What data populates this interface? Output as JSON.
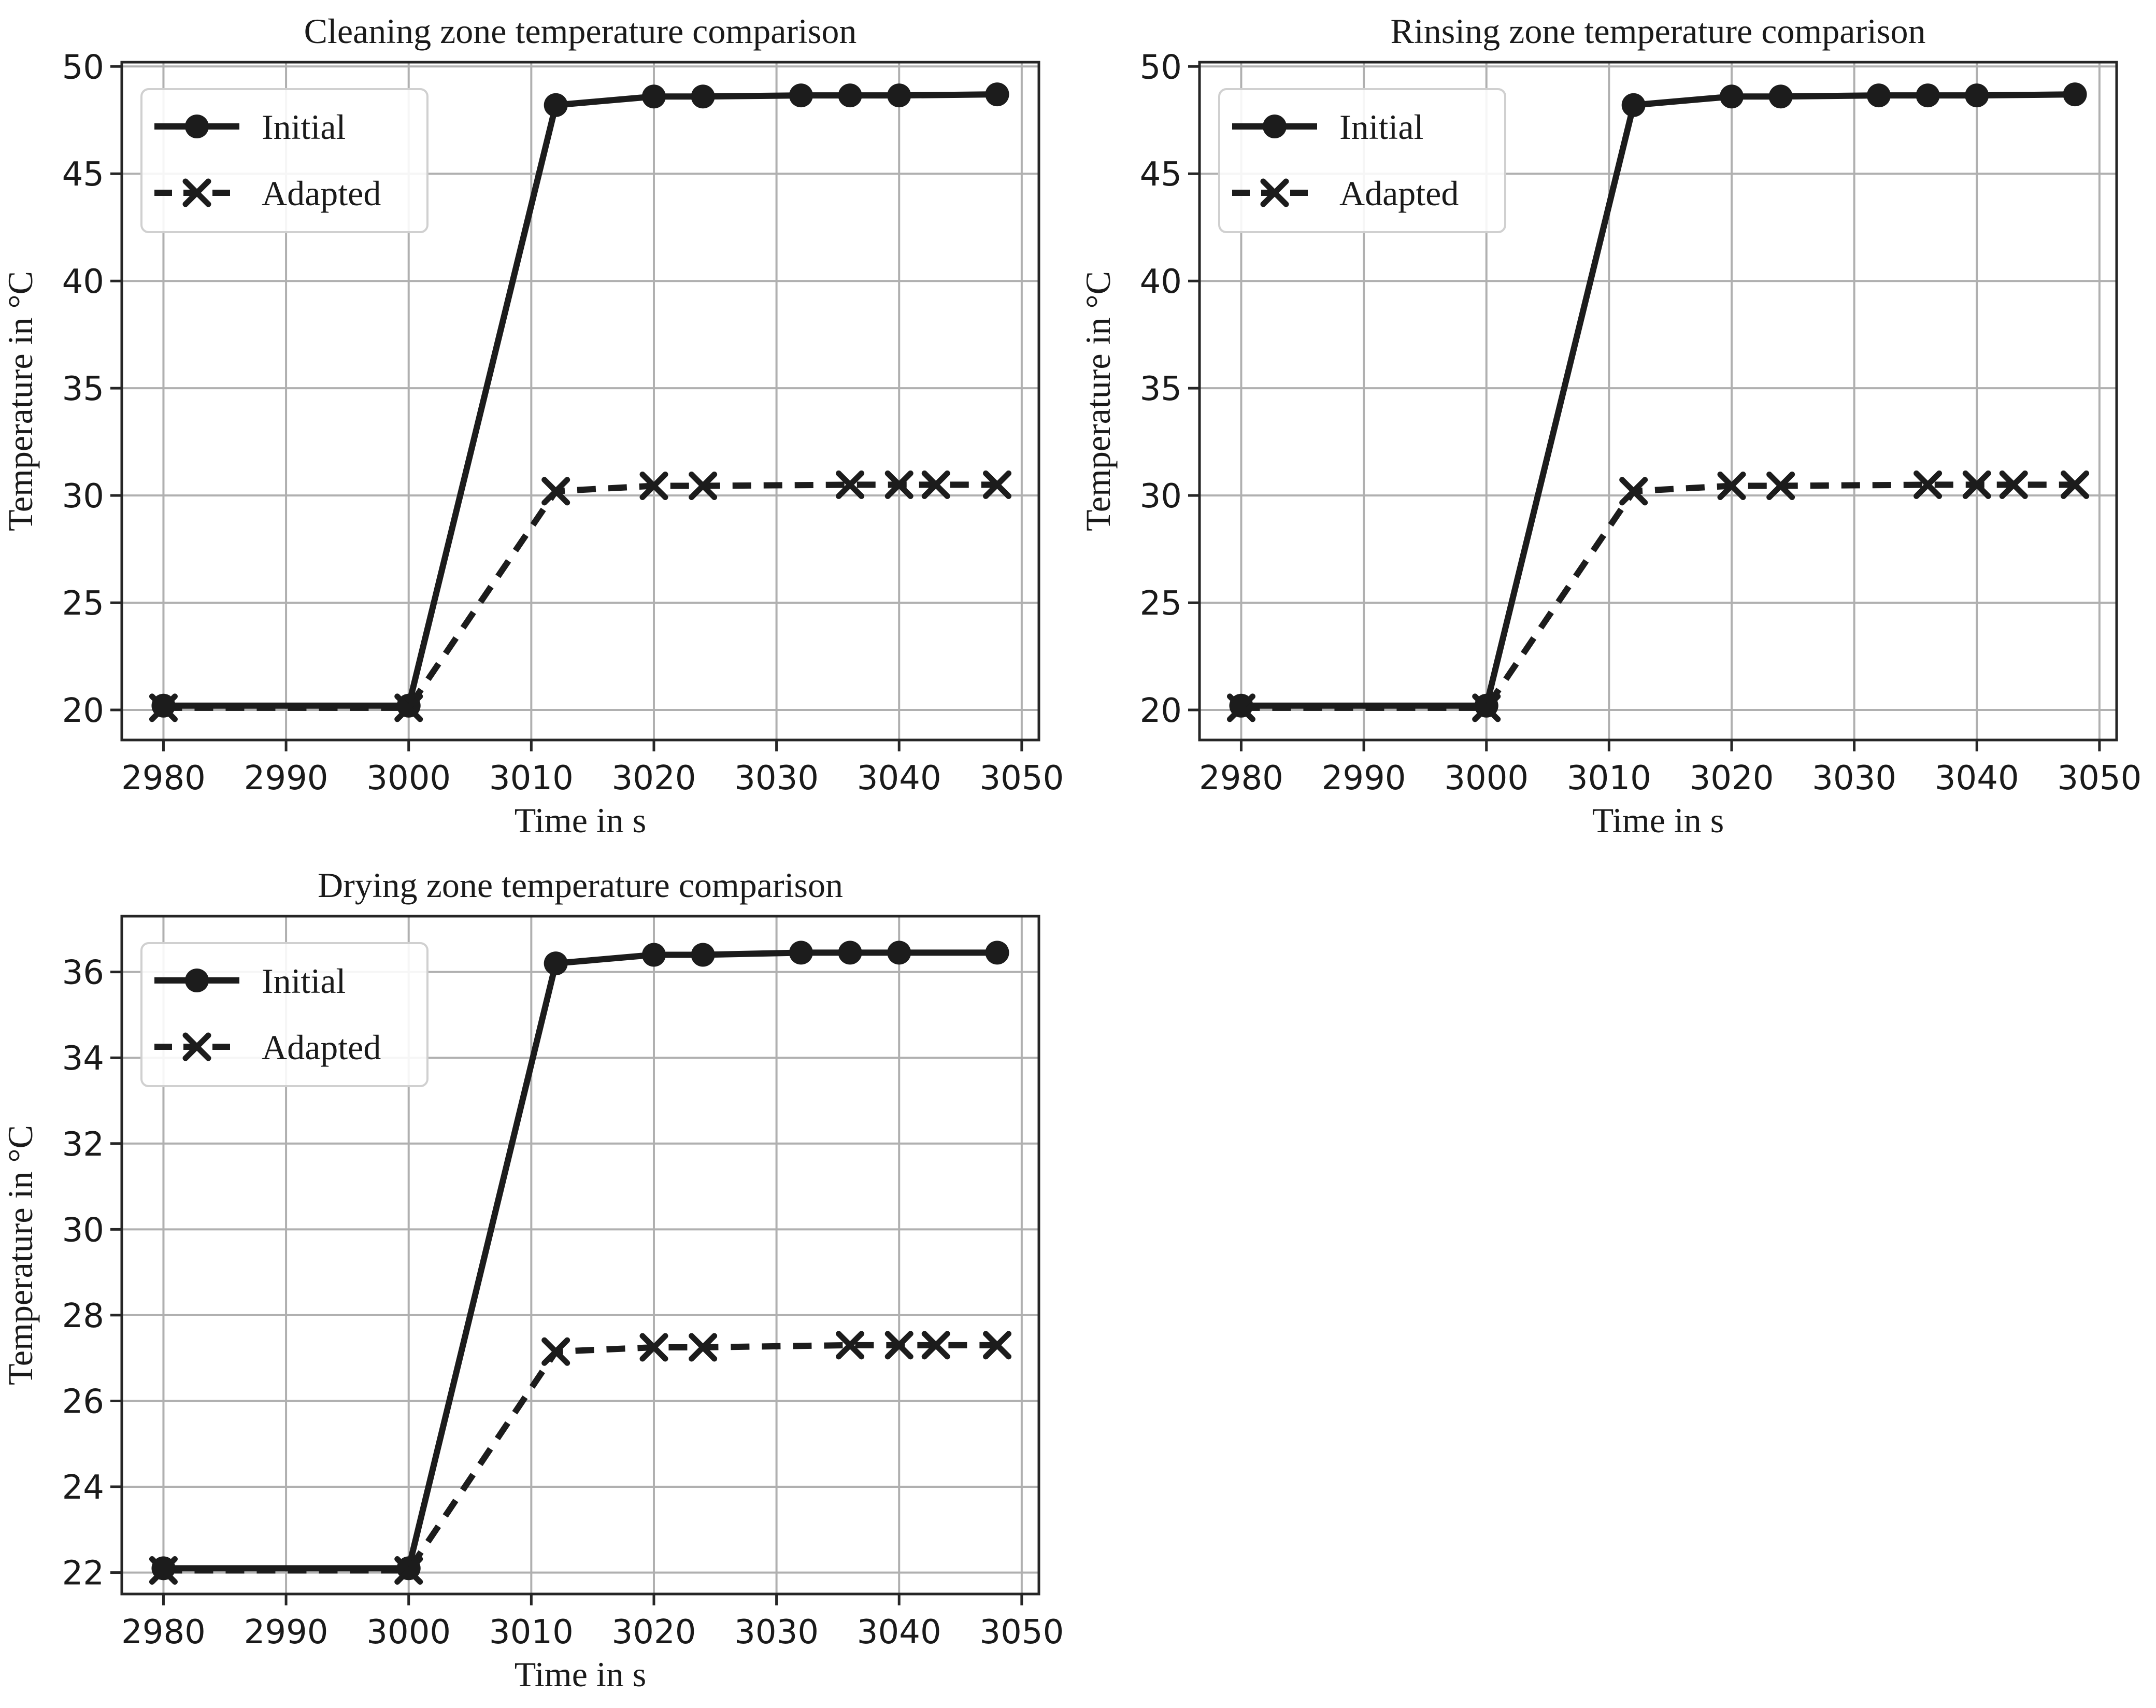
{
  "colors": {
    "line": "#1c1c1c",
    "grid": "#b0b0b0",
    "spine": "#262626",
    "text": "#1a1a1a",
    "legend_border": "#d0d0d0",
    "background": "#ffffff"
  },
  "legend_labels": {
    "initial": "Initial",
    "adapted": "Adapted"
  },
  "chart_data": [
    {
      "type": "line",
      "title": "Cleaning zone temperature comparison",
      "xlabel": "Time in s",
      "ylabel": "Temperature in °C",
      "xlim": [
        2976.6,
        3051.4
      ],
      "ylim": [
        18.6,
        50.2
      ],
      "xticks": [
        2980,
        2990,
        3000,
        3010,
        3020,
        3030,
        3040,
        3050
      ],
      "yticks": [
        20,
        25,
        30,
        35,
        40,
        45,
        50
      ],
      "grid": true,
      "legend": {
        "position": "upper left",
        "entries": [
          "Initial",
          "Adapted"
        ]
      },
      "series": [
        {
          "name": "Initial",
          "line": "solid",
          "marker": "circle",
          "x": [
            2980,
            3000,
            3012,
            3020,
            3024,
            3032,
            3036,
            3040,
            3048
          ],
          "y": [
            20.2,
            20.2,
            48.2,
            48.6,
            48.6,
            48.65,
            48.65,
            48.65,
            48.7
          ]
        },
        {
          "name": "Adapted",
          "line": "dashed",
          "marker": "x",
          "x": [
            2980,
            3000,
            3012,
            3020,
            3024,
            3036,
            3040,
            3043,
            3048
          ],
          "y": [
            20.1,
            20.1,
            30.2,
            30.45,
            30.45,
            30.5,
            30.5,
            30.5,
            30.5
          ]
        }
      ]
    },
    {
      "type": "line",
      "title": "Rinsing zone temperature comparison",
      "xlabel": "Time in s",
      "ylabel": "Temperature in °C",
      "xlim": [
        2976.6,
        3051.4
      ],
      "ylim": [
        18.6,
        50.2
      ],
      "xticks": [
        2980,
        2990,
        3000,
        3010,
        3020,
        3030,
        3040,
        3050
      ],
      "yticks": [
        20,
        25,
        30,
        35,
        40,
        45,
        50
      ],
      "grid": true,
      "legend": {
        "position": "upper left",
        "entries": [
          "Initial",
          "Adapted"
        ]
      },
      "series": [
        {
          "name": "Initial",
          "line": "solid",
          "marker": "circle",
          "x": [
            2980,
            3000,
            3012,
            3020,
            3024,
            3032,
            3036,
            3040,
            3048
          ],
          "y": [
            20.2,
            20.2,
            48.2,
            48.6,
            48.6,
            48.65,
            48.65,
            48.65,
            48.7
          ]
        },
        {
          "name": "Adapted",
          "line": "dashed",
          "marker": "x",
          "x": [
            2980,
            3000,
            3012,
            3020,
            3024,
            3036,
            3040,
            3043,
            3048
          ],
          "y": [
            20.1,
            20.1,
            30.2,
            30.45,
            30.45,
            30.5,
            30.5,
            30.5,
            30.5
          ]
        }
      ]
    },
    {
      "type": "line",
      "title": "Drying zone temperature comparison",
      "xlabel": "Time in s",
      "ylabel": "Temperature in °C",
      "xlim": [
        2976.6,
        3051.4
      ],
      "ylim": [
        21.5,
        37.3
      ],
      "xticks": [
        2980,
        2990,
        3000,
        3010,
        3020,
        3030,
        3040,
        3050
      ],
      "yticks": [
        22,
        24,
        26,
        28,
        30,
        32,
        34,
        36
      ],
      "grid": true,
      "legend": {
        "position": "upper left",
        "entries": [
          "Initial",
          "Adapted"
        ]
      },
      "series": [
        {
          "name": "Initial",
          "line": "solid",
          "marker": "circle",
          "x": [
            2980,
            3000,
            3012,
            3020,
            3024,
            3032,
            3036,
            3040,
            3048
          ],
          "y": [
            22.1,
            22.1,
            36.2,
            36.4,
            36.4,
            36.45,
            36.45,
            36.45,
            36.45
          ]
        },
        {
          "name": "Adapted",
          "line": "dashed",
          "marker": "x",
          "x": [
            2980,
            3000,
            3012,
            3020,
            3024,
            3036,
            3040,
            3043,
            3048
          ],
          "y": [
            22.05,
            22.05,
            27.15,
            27.25,
            27.25,
            27.3,
            27.3,
            27.3,
            27.3
          ]
        }
      ]
    }
  ]
}
